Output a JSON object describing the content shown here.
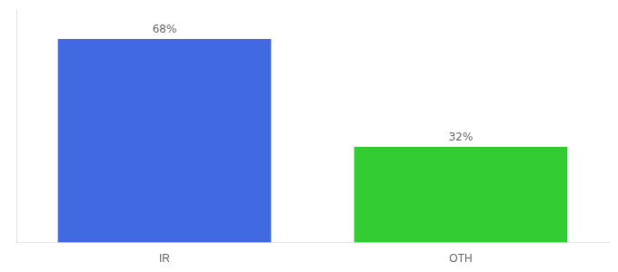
{
  "chart_data": {
    "type": "bar",
    "categories": [
      "IR",
      "OTH"
    ],
    "values": [
      68,
      32
    ],
    "value_labels": [
      "68%",
      "32%"
    ],
    "colors": [
      "#4169e1",
      "#33cc33"
    ],
    "ylim": [
      0,
      78
    ],
    "grid": false,
    "data_labels": true,
    "tick_labels": "x"
  }
}
